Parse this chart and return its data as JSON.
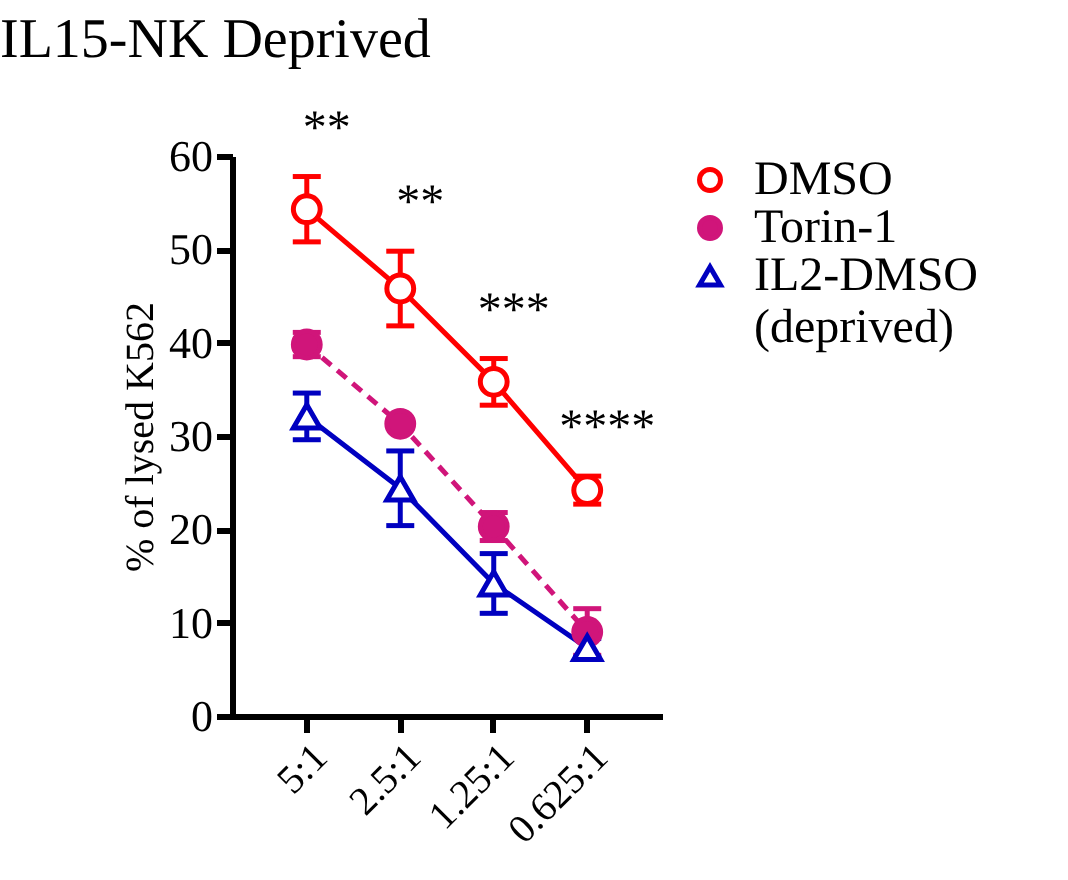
{
  "chart_data": {
    "type": "line",
    "title": "IL15-NK Deprived",
    "ylabel": "% of lysed K562",
    "categories": [
      "5:1",
      "2.5:1",
      "1.25:1",
      "0.625:1"
    ],
    "series": [
      {
        "name": "DMSO",
        "color": "#ff0000",
        "values": [
          54.3,
          45.8,
          35.8,
          24.2
        ],
        "errors": [
          3.5,
          4,
          2.5,
          1.5
        ],
        "marker": "circle",
        "line_style": "solid"
      },
      {
        "name": "Torin-1",
        "color": "#d0157a",
        "values": [
          39.8,
          31.3,
          20.3,
          9
        ],
        "errors": [
          1.3,
          0.5,
          1.5,
          2.5
        ],
        "marker": "circle",
        "line_style": "dashed"
      },
      {
        "name": "IL2-DMSO (deprived)",
        "color": "#0000c0",
        "values": [
          32.1,
          24.4,
          14.2,
          7.3
        ],
        "errors": [
          2.5,
          4,
          3.2,
          1
        ],
        "marker": "triangle",
        "line_style": "solid"
      }
    ],
    "ylim": [
      0,
      60
    ],
    "yticks": [
      0,
      10,
      20,
      30,
      40,
      50,
      60
    ],
    "grid": false,
    "legend": "right",
    "annotations": [
      "**",
      "**",
      "***",
      "****"
    ]
  }
}
